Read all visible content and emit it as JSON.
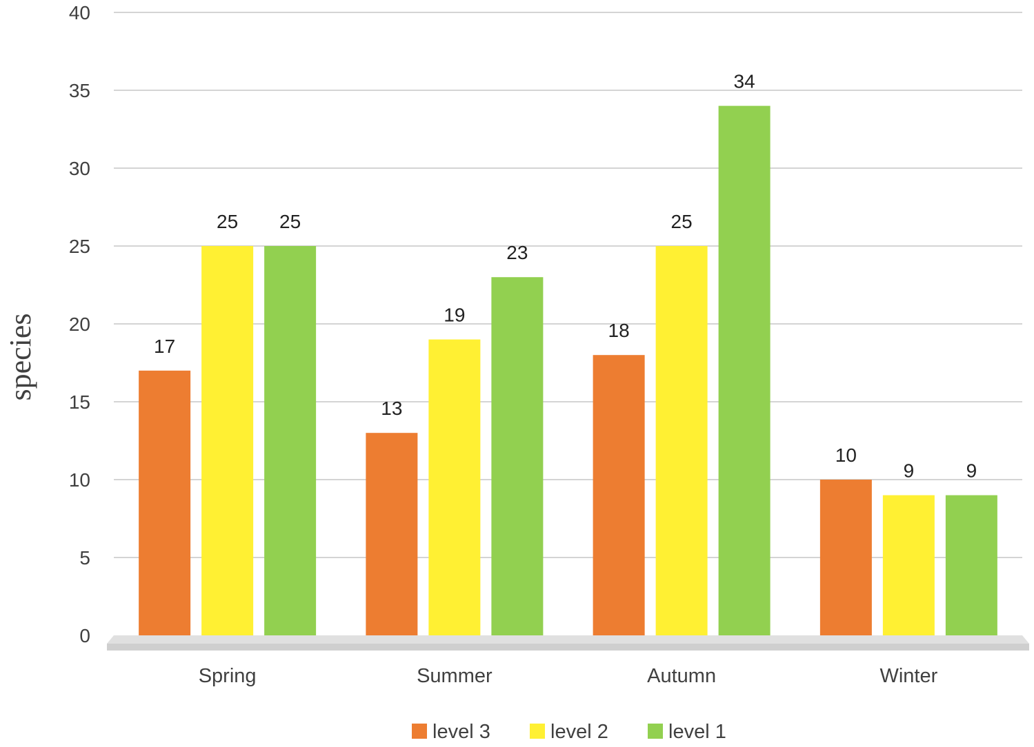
{
  "chart_data": {
    "type": "bar",
    "categories": [
      "Spring",
      "Summer",
      "Autumn",
      "Winter"
    ],
    "series": [
      {
        "name": "level 3",
        "values": [
          17,
          13,
          18,
          10
        ],
        "color": "#ED7D31"
      },
      {
        "name": "level 2",
        "values": [
          25,
          19,
          25,
          9
        ],
        "color": "#FFF033"
      },
      {
        "name": "level 1",
        "values": [
          25,
          23,
          34,
          9
        ],
        "color": "#92D050"
      }
    ],
    "title": "",
    "xlabel": "",
    "ylabel": "species",
    "ylim": [
      0,
      40
    ],
    "yticks": [
      0,
      5,
      10,
      15,
      20,
      25,
      30,
      35,
      40
    ],
    "grid": true,
    "legend": "bottom",
    "data_labels": true
  }
}
